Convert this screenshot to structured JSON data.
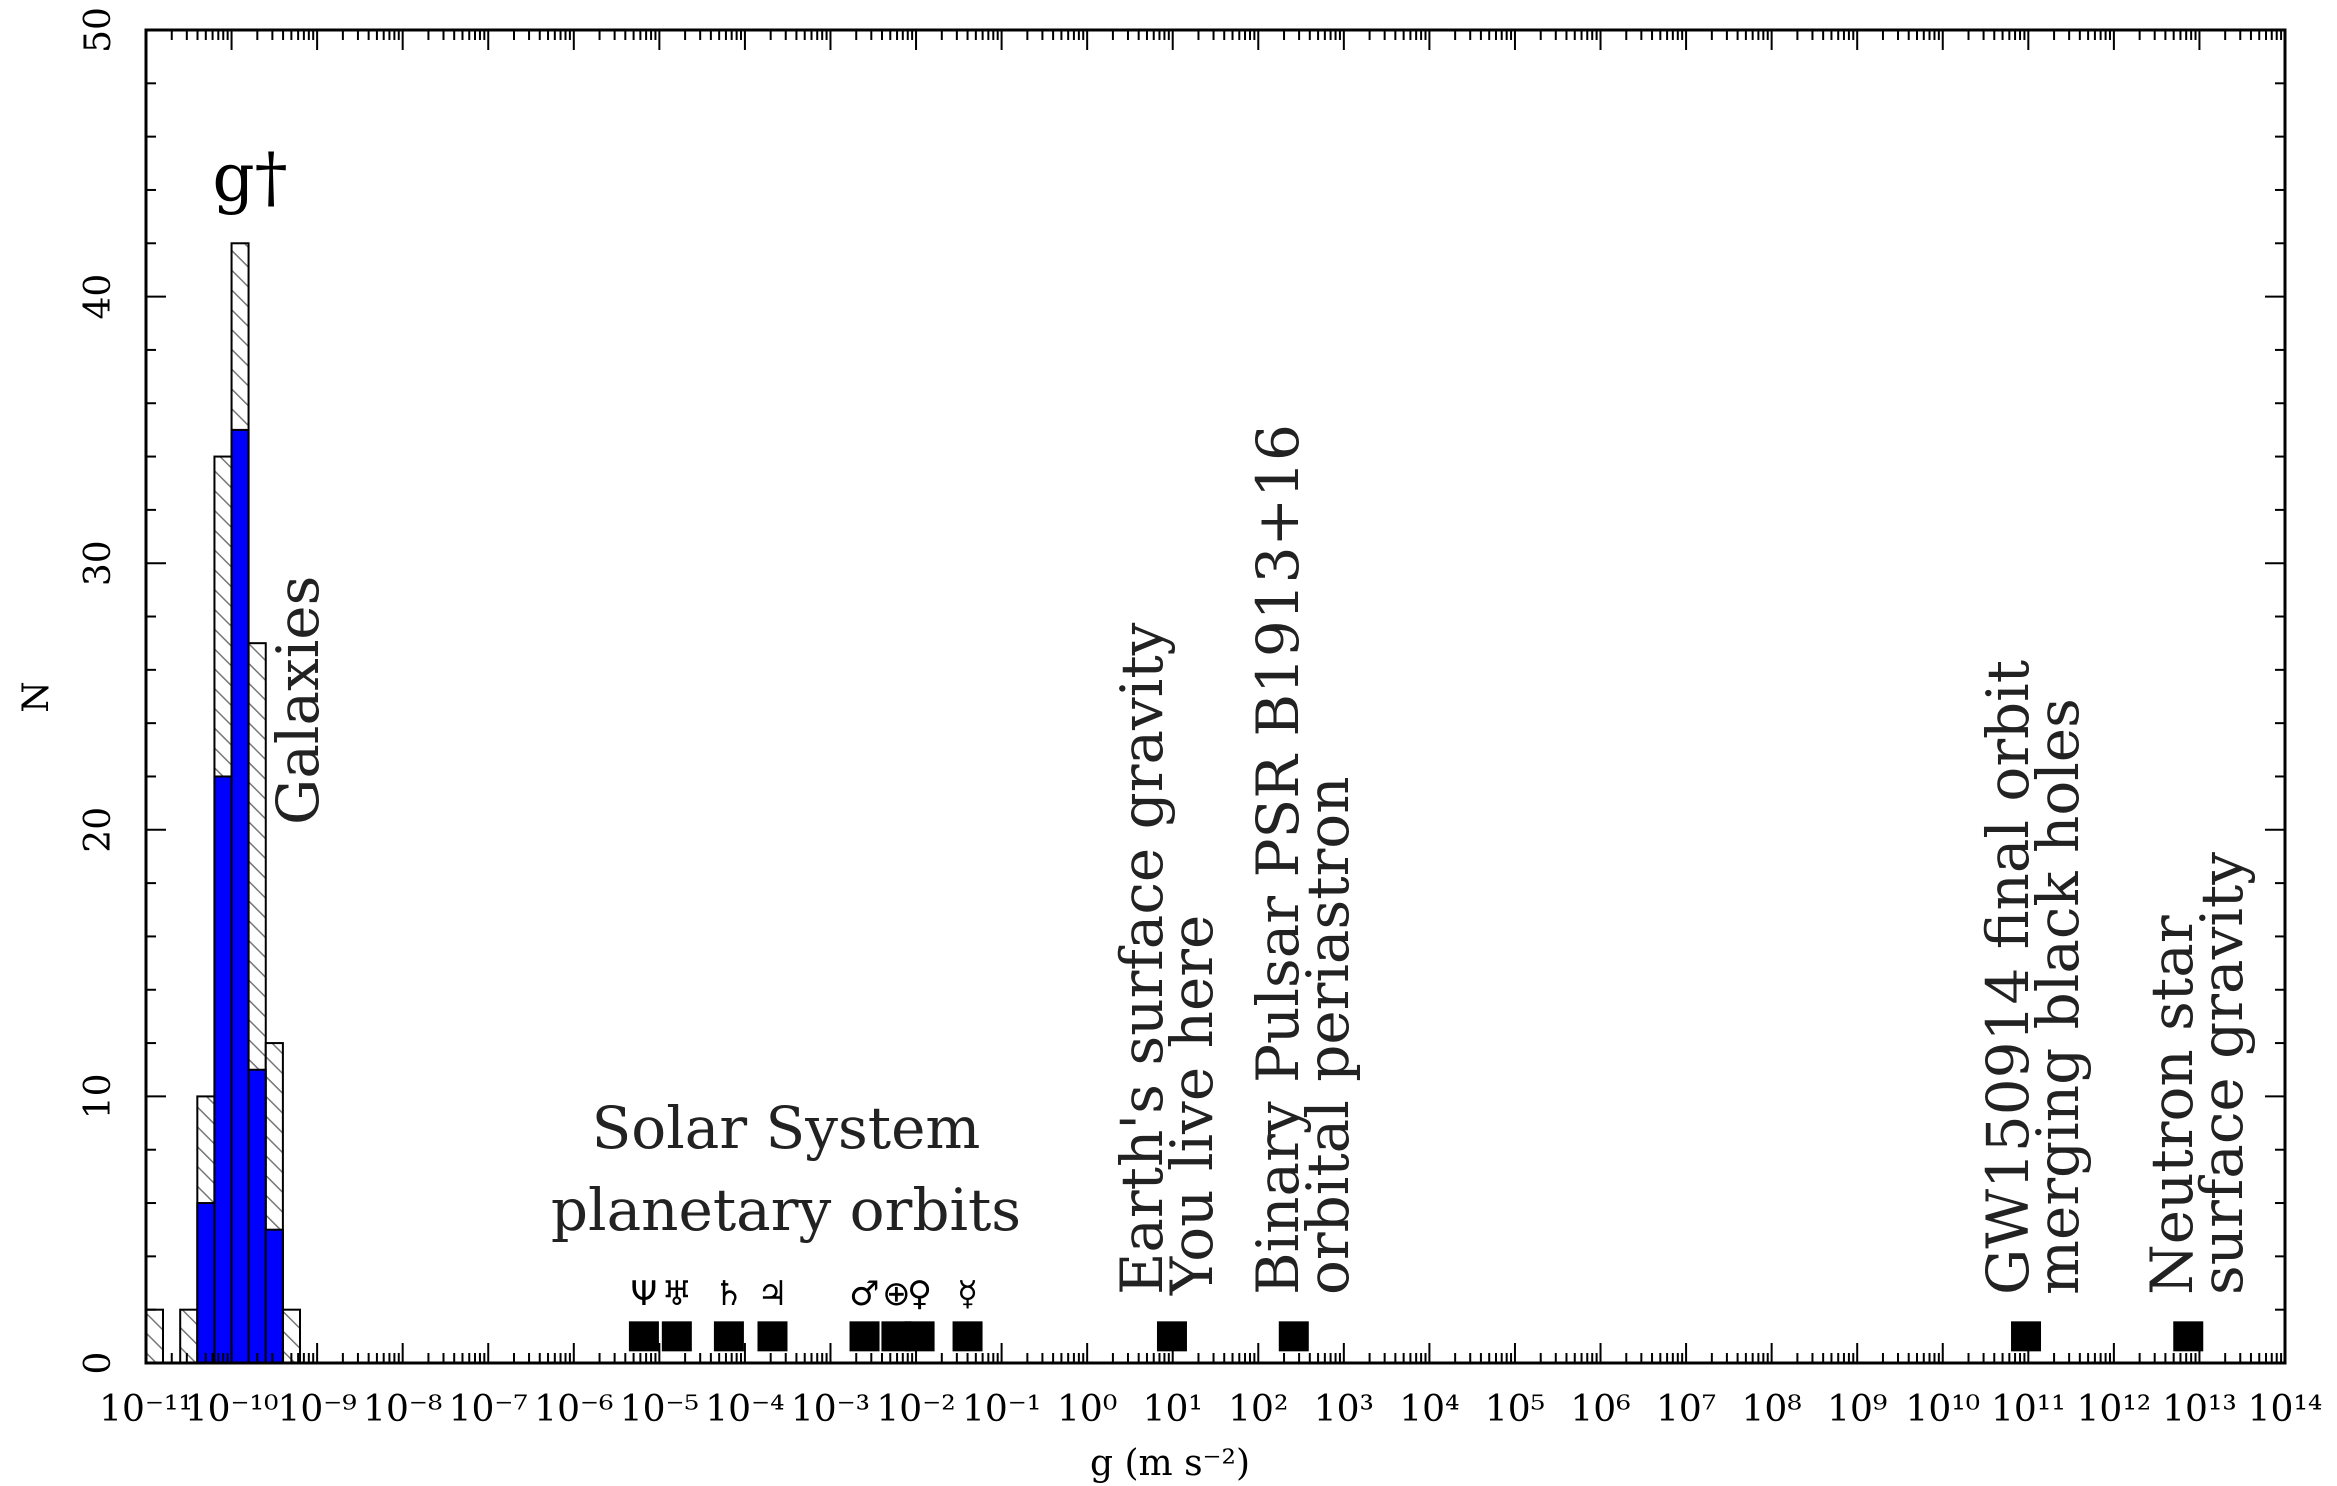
{
  "chart_data": {
    "type": "histogram",
    "xlabel": "g (m s⁻²)",
    "ylabel": "N",
    "xscale": "log",
    "xlim": [
      1e-11,
      100000000000000.0
    ],
    "ylim": [
      0,
      50
    ],
    "xticks": [
      {
        "value": 1e-11,
        "label": "10⁻¹¹"
      },
      {
        "value": 1e-10,
        "label": "10⁻¹⁰"
      },
      {
        "value": 1e-09,
        "label": "10⁻⁹"
      },
      {
        "value": 1e-08,
        "label": "10⁻⁸"
      },
      {
        "value": 1e-07,
        "label": "10⁻⁷"
      },
      {
        "value": 1e-06,
        "label": "10⁻⁶"
      },
      {
        "value": 1e-05,
        "label": "10⁻⁵"
      },
      {
        "value": 0.0001,
        "label": "10⁻⁴"
      },
      {
        "value": 0.001,
        "label": "10⁻³"
      },
      {
        "value": 0.01,
        "label": "10⁻²"
      },
      {
        "value": 0.1,
        "label": "10⁻¹"
      },
      {
        "value": 1,
        "label": "10⁰"
      },
      {
        "value": 10,
        "label": "10¹"
      },
      {
        "value": 100,
        "label": "10²"
      },
      {
        "value": 1000,
        "label": "10³"
      },
      {
        "value": 10000.0,
        "label": "10⁴"
      },
      {
        "value": 100000.0,
        "label": "10⁵"
      },
      {
        "value": 1000000.0,
        "label": "10⁶"
      },
      {
        "value": 10000000.0,
        "label": "10⁷"
      },
      {
        "value": 100000000.0,
        "label": "10⁸"
      },
      {
        "value": 1000000000.0,
        "label": "10⁹"
      },
      {
        "value": 10000000000.0,
        "label": "10¹⁰"
      },
      {
        "value": 100000000000.0,
        "label": "10¹¹"
      },
      {
        "value": 1000000000000.0,
        "label": "10¹²"
      },
      {
        "value": 10000000000000.0,
        "label": "10¹³"
      },
      {
        "value": 100000000000000.0,
        "label": "10¹⁴"
      }
    ],
    "yticks": [
      0,
      10,
      20,
      30,
      40,
      50
    ],
    "bins": [
      1e-11,
      1.58e-11,
      2.51e-11,
      3.98e-11,
      6.31e-11,
      1e-10,
      1.58e-10,
      2.51e-10,
      3.98e-10,
      6.31e-10
    ],
    "series": [
      {
        "color": "#808080",
        "hatch": true,
        "counts": [
          2,
          0,
          2,
          10,
          34,
          42,
          27,
          12,
          2
        ]
      },
      {
        "color": "#0000ff",
        "hatch": false,
        "counts": [
          0,
          0,
          0,
          6,
          22,
          35,
          11,
          5,
          0
        ]
      }
    ],
    "peak_label": "g†",
    "series_label": "Galaxies",
    "markers": {
      "type": "scatter",
      "color": "#000000",
      "x": [
        6.6e-06,
        1.6e-05,
        6.5e-05,
        0.00021,
        0.0025,
        0.0059,
        0.011,
        0.04,
        9.8,
        260,
        94000000000.0,
        7400000000000.0
      ],
      "values": [
        1,
        1,
        1,
        1,
        1,
        1,
        1,
        1,
        1,
        1,
        1,
        1
      ],
      "labels": [
        "Ψ",
        "♅",
        "♄",
        "♃",
        "♂",
        "⊕",
        "♀",
        "☿",
        null,
        null,
        null,
        null
      ]
    },
    "annotations": [
      {
        "lines": [
          "Solar System",
          "planetary orbits"
        ]
      },
      {
        "lines": [
          "Earth's surface gravity",
          "You live here"
        ]
      },
      {
        "lines": [
          "Binary Pulsar PSR B1913+16",
          "orbital periastron"
        ]
      },
      {
        "lines": [
          "GW150914 final orbit",
          "merging black holes"
        ]
      },
      {
        "lines": [
          "Neutron star",
          "surface gravity"
        ]
      }
    ]
  }
}
